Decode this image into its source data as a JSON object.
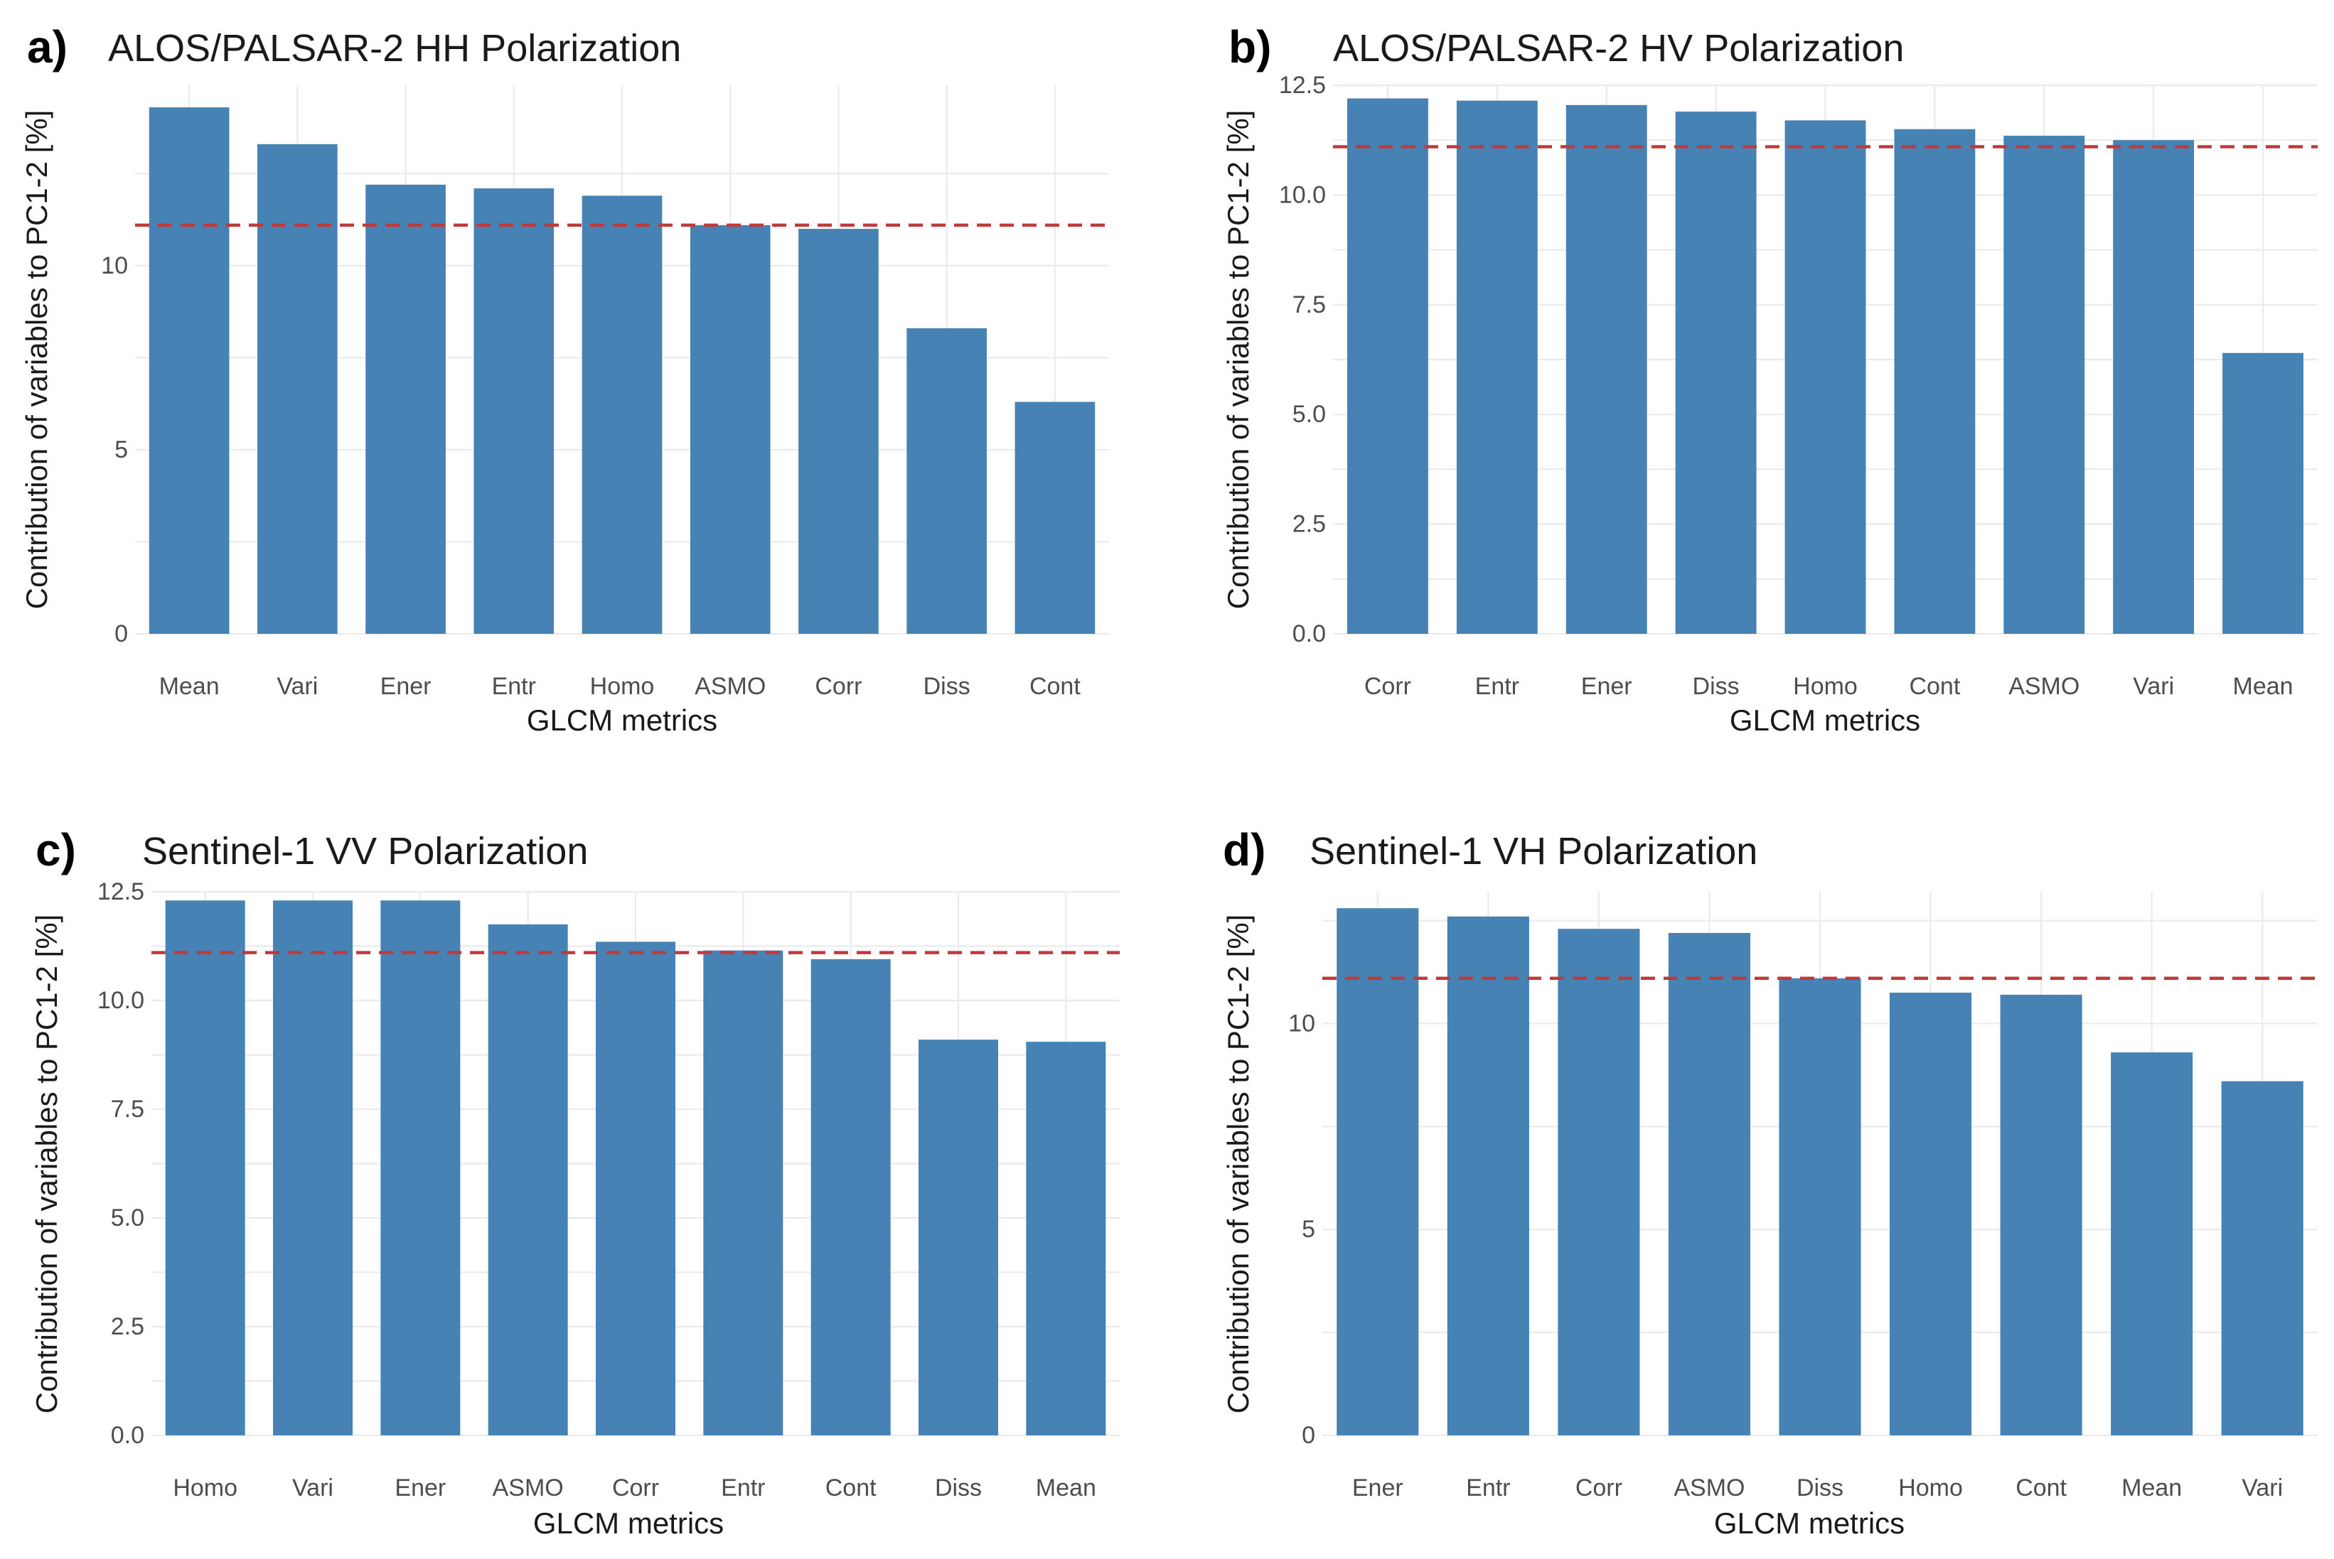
{
  "figure": {
    "xlabel": "GLCM metrics",
    "ylabel": "Contribution of variables to PC1-2 [%]",
    "bar_color": "#4682b4",
    "ref_color": "#c0393b"
  },
  "chart_data": [
    {
      "type": "bar",
      "panel": "a)",
      "title": "ALOS/PALSAR-2 HH Polarization",
      "xlabel": "GLCM metrics",
      "ylabel": "Contribution of variables to PC1-2 [%]",
      "categories": [
        "Mean",
        "Vari",
        "Ener",
        "Entr",
        "Homo",
        "ASMO",
        "Corr",
        "Diss",
        "Cont"
      ],
      "values": [
        14.3,
        13.3,
        12.2,
        12.1,
        11.9,
        11.1,
        11.0,
        8.3,
        6.3
      ],
      "reference_line": 11.1,
      "ylim": [
        0,
        14.9
      ],
      "yticks": [
        0,
        5,
        10
      ],
      "ytick_labels": [
        "0",
        "5",
        "10"
      ]
    },
    {
      "type": "bar",
      "panel": "b)",
      "title": "ALOS/PALSAR-2 HV Polarization",
      "xlabel": "GLCM metrics",
      "ylabel": "Contribution of variables to PC1-2 [%]",
      "categories": [
        "Corr",
        "Entr",
        "Ener",
        "Diss",
        "Homo",
        "Cont",
        "ASMO",
        "Vari",
        "Mean"
      ],
      "values": [
        12.2,
        12.15,
        12.05,
        11.9,
        11.7,
        11.5,
        11.35,
        11.25,
        6.4
      ],
      "reference_line": 11.1,
      "ylim": [
        0,
        12.5
      ],
      "yticks": [
        0,
        2.5,
        5,
        7.5,
        10,
        12.5
      ],
      "ytick_labels": [
        "0.0",
        "2.5",
        "5.0",
        "7.5",
        "10.0",
        "12.5"
      ]
    },
    {
      "type": "bar",
      "panel": "c)",
      "title": "Sentinel-1 VV Polarization",
      "xlabel": "GLCM metrics",
      "ylabel": "Contribution of variables to PC1-2 [%]",
      "categories": [
        "Homo",
        "Vari",
        "Ener",
        "ASMO",
        "Corr",
        "Entr",
        "Cont",
        "Diss",
        "Mean"
      ],
      "values": [
        12.3,
        12.3,
        12.3,
        11.75,
        11.35,
        11.15,
        10.95,
        9.1,
        9.05
      ],
      "reference_line": 11.1,
      "ylim": [
        0,
        12.5
      ],
      "yticks": [
        0,
        2.5,
        5,
        7.5,
        10,
        12.5
      ],
      "ytick_labels": [
        "0.0",
        "2.5",
        "5.0",
        "7.5",
        "10.0",
        "12.5"
      ]
    },
    {
      "type": "bar",
      "panel": "d)",
      "title": "Sentinel-1 VH Polarization",
      "xlabel": "GLCM metrics",
      "ylabel": "Contribution of variables to PC1-2 [%]",
      "categories": [
        "Ener",
        "Entr",
        "Corr",
        "ASMO",
        "Diss",
        "Homo",
        "Cont",
        "Mean",
        "Vari"
      ],
      "values": [
        12.8,
        12.6,
        12.3,
        12.2,
        11.1,
        10.75,
        10.7,
        9.3,
        8.6
      ],
      "reference_line": 11.1,
      "ylim": [
        0,
        13.2
      ],
      "yticks": [
        0,
        5,
        10
      ],
      "ytick_labels": [
        "0",
        "5",
        "10"
      ]
    }
  ]
}
